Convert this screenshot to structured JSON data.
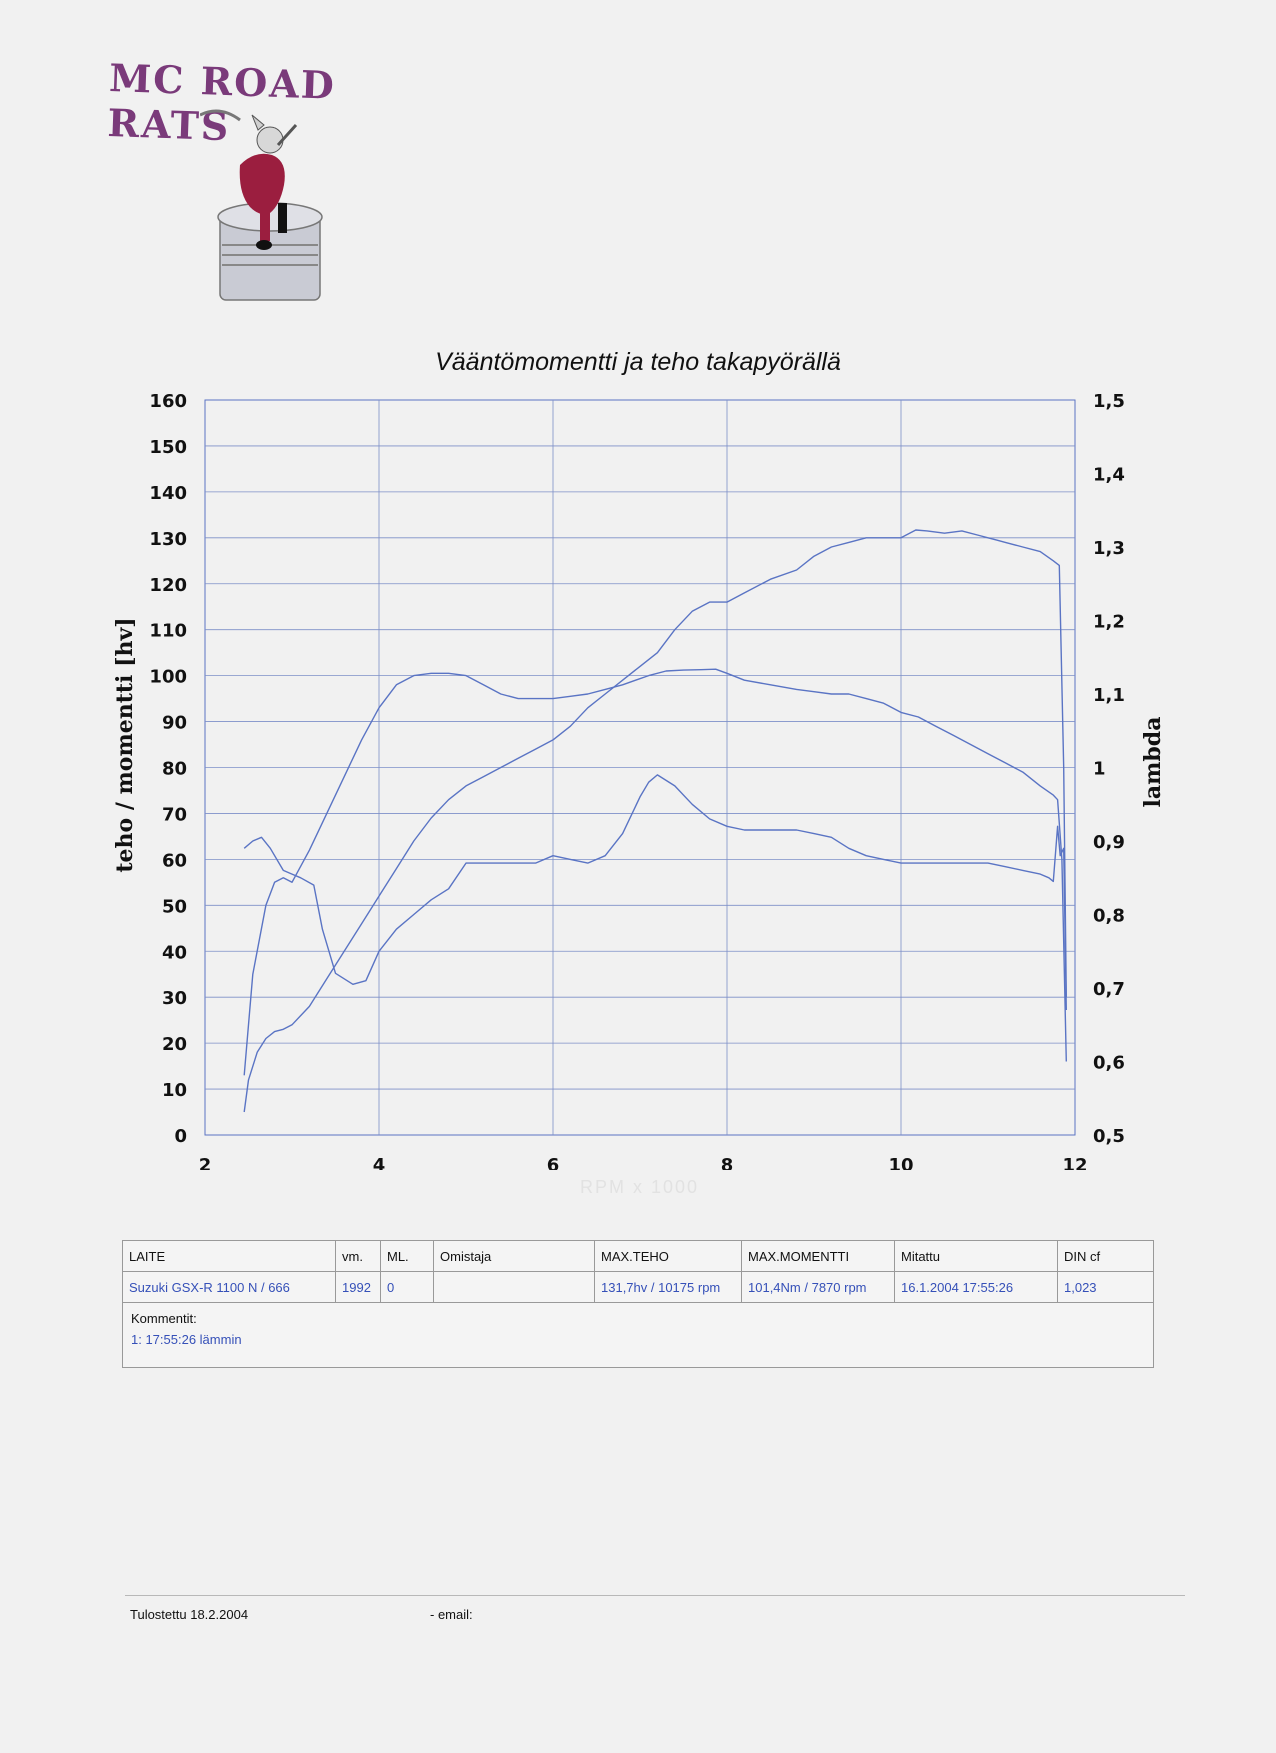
{
  "logo": {
    "text": "MC ROAD RATS",
    "icon": "rat-on-piston-icon"
  },
  "chart_data": {
    "type": "line",
    "title": "Vääntömomentti ja teho takapyörällä",
    "xlabel": "RPM x 1000",
    "ylabel": "teho / momentti [hv]",
    "y2label": "lambda",
    "xlim": [
      2,
      12
    ],
    "ylim": [
      0,
      160
    ],
    "y2lim": [
      0.5,
      1.5
    ],
    "x_ticks": [
      "2",
      "4",
      "6",
      "8",
      "10",
      "12"
    ],
    "y_ticks": [
      "0",
      "10",
      "20",
      "30",
      "40",
      "50",
      "60",
      "70",
      "80",
      "90",
      "100",
      "110",
      "120",
      "130",
      "140",
      "150",
      "160"
    ],
    "y2_ticks": [
      "0,5",
      "0,6",
      "0,7",
      "0,8",
      "0,9",
      "1",
      "1,1",
      "1,2",
      "1,3",
      "1,4",
      "1,5"
    ],
    "grid": true,
    "line_color": "#5a74c4",
    "series": [
      {
        "axis": "left",
        "x": [
          2.45,
          2.5,
          2.6,
          2.7,
          2.8,
          2.9,
          3.0,
          3.2,
          3.4,
          3.6,
          3.8,
          4.0,
          4.2,
          4.4,
          4.6,
          4.8,
          5.0,
          5.2,
          5.4,
          5.6,
          5.8,
          6.0,
          6.2,
          6.4,
          6.6,
          6.8,
          7.0,
          7.2,
          7.4,
          7.6,
          7.8,
          8.0,
          8.2,
          8.5,
          8.8,
          9.0,
          9.2,
          9.4,
          9.6,
          9.8,
          10.0,
          10.17,
          10.3,
          10.5,
          10.7,
          10.9,
          11.0,
          11.1,
          11.2,
          11.4,
          11.6,
          11.75,
          11.82,
          11.87,
          11.9
        ],
        "y": [
          5,
          12,
          18,
          21,
          22.5,
          23,
          24,
          28,
          34,
          40,
          46,
          52,
          58,
          64,
          69,
          73,
          76,
          78,
          80,
          82,
          84,
          86,
          89,
          93,
          96,
          99,
          102,
          105,
          110,
          114,
          116,
          116,
          118,
          121,
          123,
          126,
          128,
          129,
          130,
          130,
          130,
          131.7,
          131.5,
          131,
          131.5,
          130.5,
          130,
          129.5,
          129,
          128,
          127,
          125,
          124,
          80,
          30
        ]
      },
      {
        "axis": "left",
        "x": [
          2.45,
          2.55,
          2.7,
          2.8,
          2.9,
          3.0,
          3.2,
          3.4,
          3.6,
          3.8,
          4.0,
          4.2,
          4.4,
          4.6,
          4.8,
          5.0,
          5.2,
          5.4,
          5.6,
          5.8,
          6.0,
          6.2,
          6.4,
          6.6,
          6.8,
          6.95,
          7.1,
          7.3,
          7.5,
          7.7,
          7.87,
          8.0,
          8.2,
          8.5,
          8.8,
          9.0,
          9.2,
          9.4,
          9.6,
          9.8,
          10.0,
          10.2,
          10.4,
          10.6,
          10.8,
          11.0,
          11.2,
          11.4,
          11.6,
          11.75,
          11.8,
          11.85,
          11.9
        ],
        "y": [
          13,
          35,
          50,
          55,
          56,
          55,
          62,
          70,
          78,
          86,
          93,
          98,
          100,
          100.5,
          100.5,
          100,
          98,
          96,
          95,
          95,
          95,
          95.5,
          96,
          97,
          98,
          99,
          100,
          101,
          101.2,
          101.3,
          101.4,
          100.5,
          99,
          98,
          97,
          96.5,
          96,
          96,
          95,
          94,
          92,
          91,
          89,
          87,
          85,
          83,
          81,
          79,
          76,
          74,
          73,
          60,
          16
        ]
      },
      {
        "axis": "right",
        "x": [
          2.45,
          2.55,
          2.65,
          2.75,
          2.9,
          3.0,
          3.1,
          3.25,
          3.35,
          3.5,
          3.7,
          3.85,
          4.0,
          4.2,
          4.4,
          4.6,
          4.8,
          5.0,
          5.2,
          5.4,
          5.6,
          5.8,
          6.0,
          6.2,
          6.4,
          6.6,
          6.8,
          7.0,
          7.1,
          7.2,
          7.4,
          7.6,
          7.8,
          8.0,
          8.2,
          8.5,
          8.8,
          9.0,
          9.2,
          9.4,
          9.6,
          9.8,
          10.0,
          10.2,
          10.4,
          10.6,
          10.8,
          11.0,
          11.2,
          11.4,
          11.6,
          11.7,
          11.75,
          11.8,
          11.83,
          11.87,
          11.9
        ],
        "y": [
          0.89,
          0.9,
          0.905,
          0.89,
          0.86,
          0.855,
          0.85,
          0.84,
          0.78,
          0.72,
          0.705,
          0.71,
          0.75,
          0.78,
          0.8,
          0.82,
          0.835,
          0.87,
          0.87,
          0.87,
          0.87,
          0.87,
          0.88,
          0.875,
          0.87,
          0.88,
          0.91,
          0.96,
          0.98,
          0.99,
          0.975,
          0.95,
          0.93,
          0.92,
          0.915,
          0.915,
          0.915,
          0.91,
          0.905,
          0.89,
          0.88,
          0.875,
          0.87,
          0.87,
          0.87,
          0.87,
          0.87,
          0.87,
          0.865,
          0.86,
          0.855,
          0.85,
          0.845,
          0.92,
          0.88,
          0.89,
          0.67
        ]
      }
    ]
  },
  "info_table": {
    "headers": [
      "LAITE",
      "vm.",
      "ML.",
      "Omistaja",
      "MAX.TEHO",
      "MAX.MOMENTTI",
      "Mitattu",
      "DIN cf"
    ],
    "values": [
      "Suzuki GSX-R 1100 N / 666",
      "1992",
      "0",
      "",
      "131,7hv / 10175 rpm",
      "101,4Nm / 7870 rpm",
      "16.1.2004 17:55:26",
      "1,023"
    ],
    "comments_label": "Kommentit:",
    "comment": "1:   17:55:26 lämmin"
  },
  "footer": {
    "printed": "Tulostettu 18.2.2004",
    "email": "-   email:"
  }
}
